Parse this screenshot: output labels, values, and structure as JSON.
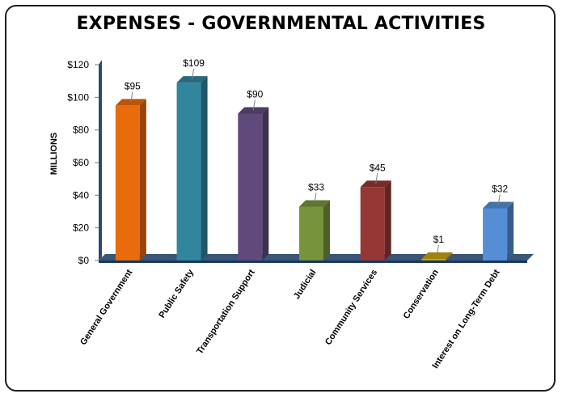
{
  "chart_data": {
    "type": "bar",
    "title": "EXPENSES - GOVERNMENTAL ACTIVITIES",
    "xlabel": "",
    "ylabel": "MILLIONS",
    "ylim": [
      0,
      120
    ],
    "yticks": [
      0,
      20,
      40,
      60,
      80,
      100,
      120
    ],
    "ytick_labels": [
      "$0",
      "$20",
      "$40",
      "$60",
      "$80",
      "$100",
      "$120"
    ],
    "categories": [
      "General Government",
      "Public Safety",
      "Transportation Support",
      "Judicial",
      "Community Services",
      "Conservation",
      "Interest on Long-Term Debt"
    ],
    "values": [
      95,
      109,
      90,
      33,
      45,
      1,
      32
    ],
    "data_labels": [
      "$95",
      "$109",
      "$90",
      "$33",
      "$45",
      "$1",
      "$32"
    ],
    "colors": [
      "#e86c0c",
      "#31859c",
      "#604a7b",
      "#77933c",
      "#953735",
      "#c9a30e",
      "#558ed5"
    ],
    "axis_color": "#17375e",
    "grid": false,
    "legend": "none",
    "style": "3d-columns"
  }
}
